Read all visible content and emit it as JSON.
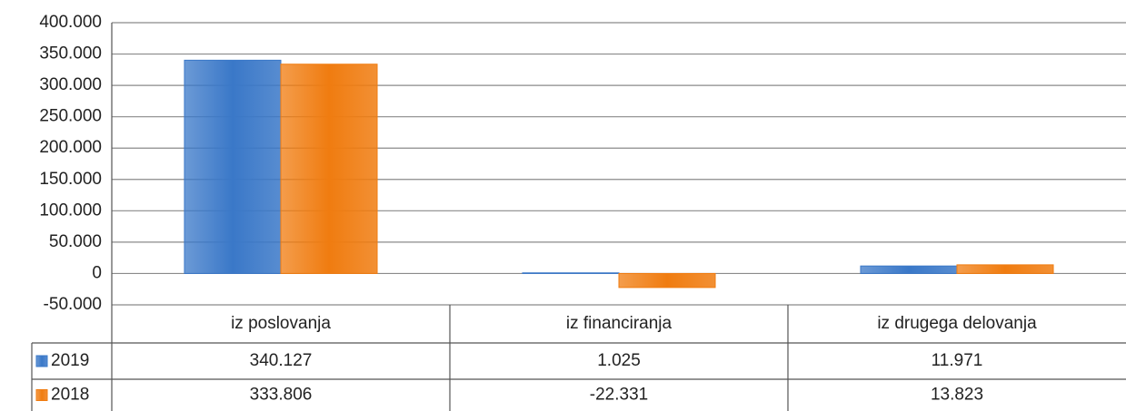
{
  "chart_data": {
    "type": "bar",
    "categories": [
      "iz poslovanja",
      "iz financiranja",
      "iz drugega delovanja"
    ],
    "series": [
      {
        "name": "2019",
        "color": "#3a78c8",
        "values": [
          340127,
          1025,
          11971
        ],
        "value_labels": [
          "340.127",
          "1.025",
          "11.971"
        ]
      },
      {
        "name": "2018",
        "color": "#f07c10",
        "values": [
          333806,
          -22331,
          13823
        ],
        "value_labels": [
          "333.806",
          "-22.331",
          "13.823"
        ]
      }
    ],
    "ylim": [
      -50000,
      400000
    ],
    "yticks": [
      {
        "value": -50000,
        "label": "-50.000"
      },
      {
        "value": 0,
        "label": "0"
      },
      {
        "value": 50000,
        "label": "50.000"
      },
      {
        "value": 100000,
        "label": "100.000"
      },
      {
        "value": 150000,
        "label": "150.000"
      },
      {
        "value": 200000,
        "label": "200.000"
      },
      {
        "value": 250000,
        "label": "250.000"
      },
      {
        "value": 300000,
        "label": "300.000"
      },
      {
        "value": 350000,
        "label": "350.000"
      },
      {
        "value": 400000,
        "label": "400.000"
      }
    ],
    "grid": true
  }
}
